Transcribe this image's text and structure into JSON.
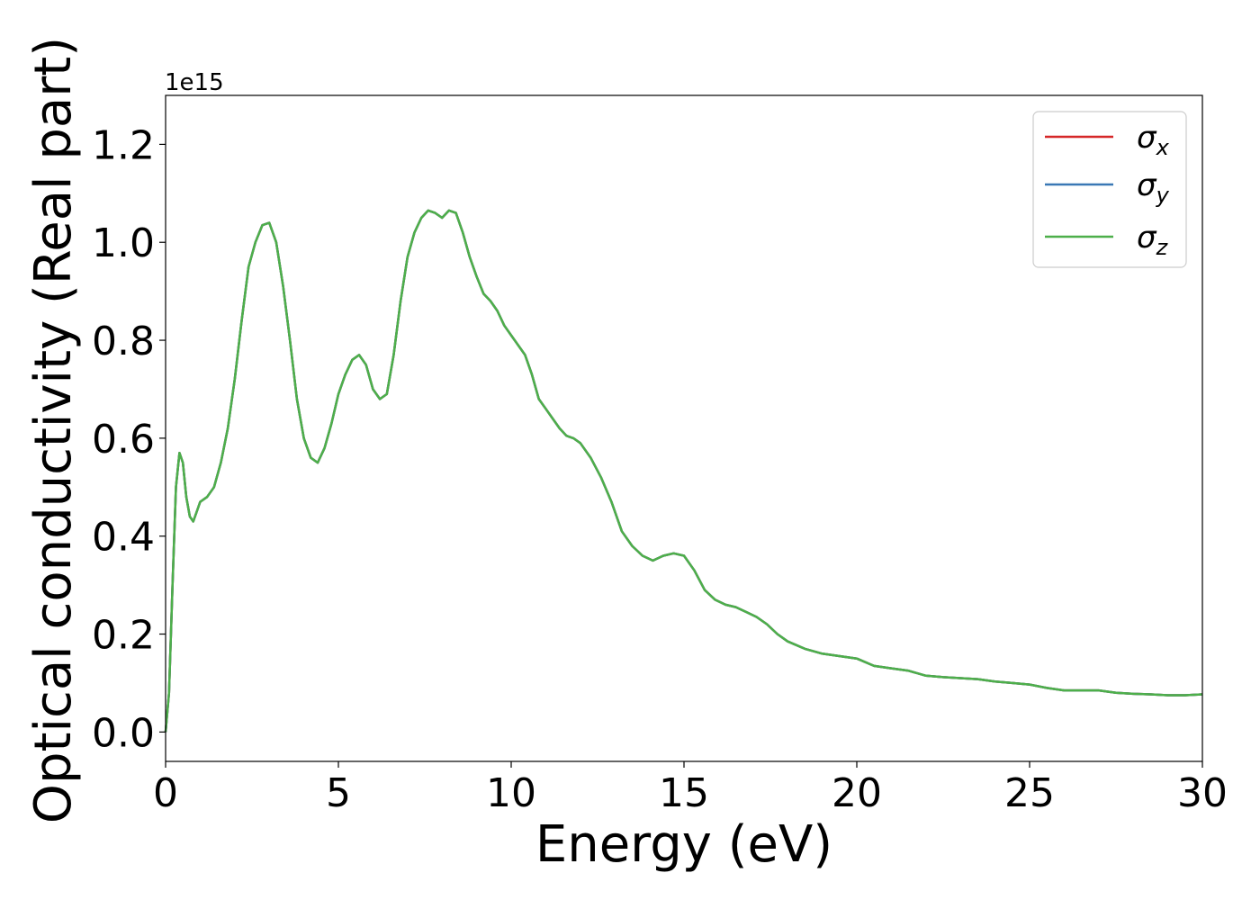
{
  "chart_data": {
    "type": "line",
    "xlabel": "Energy (eV)",
    "ylabel": "Optical conductivity (Real part)",
    "offset_label": "1e15",
    "xlim": [
      0,
      30
    ],
    "ylim": [
      -0.06,
      1.3
    ],
    "xticks": [
      0,
      5,
      10,
      15,
      20,
      25,
      30
    ],
    "xtick_labels": [
      "0",
      "5",
      "10",
      "15",
      "20",
      "25",
      "30"
    ],
    "yticks": [
      0.0,
      0.2,
      0.4,
      0.6,
      0.8,
      1.0,
      1.2
    ],
    "ytick_labels": [
      "0.0",
      "0.2",
      "0.4",
      "0.6",
      "0.8",
      "1.0",
      "1.2"
    ],
    "grid": false,
    "legend_position": "top-right",
    "legend": [
      {
        "base": "σ",
        "sub": "x",
        "color": "#d62728"
      },
      {
        "base": "σ",
        "sub": "y",
        "color": "#3a78b5"
      },
      {
        "base": "σ",
        "sub": "z",
        "color": "#4daf4a"
      }
    ],
    "series_note_hidden": "",
    "x": [
      0.0,
      0.1,
      0.2,
      0.3,
      0.4,
      0.5,
      0.6,
      0.7,
      0.8,
      0.9,
      1.0,
      1.2,
      1.4,
      1.6,
      1.8,
      2.0,
      2.2,
      2.4,
      2.6,
      2.8,
      3.0,
      3.2,
      3.4,
      3.6,
      3.8,
      4.0,
      4.2,
      4.4,
      4.6,
      4.8,
      5.0,
      5.2,
      5.4,
      5.6,
      5.8,
      6.0,
      6.2,
      6.4,
      6.6,
      6.8,
      7.0,
      7.2,
      7.4,
      7.6,
      7.8,
      8.0,
      8.2,
      8.4,
      8.6,
      8.8,
      9.0,
      9.2,
      9.4,
      9.6,
      9.8,
      10.0,
      10.2,
      10.4,
      10.6,
      10.8,
      11.0,
      11.2,
      11.4,
      11.6,
      11.8,
      12.0,
      12.3,
      12.6,
      12.9,
      13.2,
      13.5,
      13.8,
      14.1,
      14.4,
      14.7,
      15.0,
      15.3,
      15.6,
      15.9,
      16.2,
      16.5,
      16.8,
      17.1,
      17.4,
      17.7,
      18.0,
      18.5,
      19.0,
      19.5,
      20.0,
      20.5,
      21.0,
      21.5,
      22.0,
      22.5,
      23.0,
      23.5,
      24.0,
      24.5,
      25.0,
      25.5,
      26.0,
      26.5,
      27.0,
      27.5,
      28.0,
      28.5,
      29.0,
      29.5,
      30.0
    ],
    "series": [
      {
        "color": "#d62728",
        "values": [
          0.0,
          0.08,
          0.3,
          0.5,
          0.57,
          0.55,
          0.48,
          0.44,
          0.43,
          0.45,
          0.47,
          0.48,
          0.5,
          0.55,
          0.62,
          0.72,
          0.84,
          0.95,
          1.0,
          1.035,
          1.04,
          1.0,
          0.91,
          0.8,
          0.68,
          0.6,
          0.56,
          0.55,
          0.58,
          0.63,
          0.69,
          0.73,
          0.76,
          0.77,
          0.75,
          0.7,
          0.68,
          0.69,
          0.77,
          0.88,
          0.97,
          1.02,
          1.05,
          1.065,
          1.06,
          1.05,
          1.065,
          1.06,
          1.02,
          0.97,
          0.93,
          0.895,
          0.88,
          0.86,
          0.83,
          0.81,
          0.79,
          0.77,
          0.73,
          0.68,
          0.66,
          0.64,
          0.62,
          0.605,
          0.6,
          0.59,
          0.56,
          0.52,
          0.47,
          0.41,
          0.38,
          0.36,
          0.35,
          0.36,
          0.365,
          0.36,
          0.33,
          0.29,
          0.27,
          0.26,
          0.255,
          0.245,
          0.235,
          0.22,
          0.2,
          0.185,
          0.17,
          0.16,
          0.155,
          0.15,
          0.135,
          0.13,
          0.125,
          0.115,
          0.112,
          0.11,
          0.108,
          0.103,
          0.1,
          0.097,
          0.09,
          0.085,
          0.085,
          0.085,
          0.08,
          0.078,
          0.077,
          0.075,
          0.075,
          0.077
        ]
      },
      {
        "color": "#3a78b5",
        "values": [
          0.0,
          0.08,
          0.3,
          0.5,
          0.57,
          0.55,
          0.48,
          0.44,
          0.43,
          0.45,
          0.47,
          0.48,
          0.5,
          0.55,
          0.62,
          0.72,
          0.84,
          0.95,
          1.0,
          1.035,
          1.04,
          1.0,
          0.91,
          0.8,
          0.68,
          0.6,
          0.56,
          0.55,
          0.58,
          0.63,
          0.69,
          0.73,
          0.76,
          0.77,
          0.75,
          0.7,
          0.68,
          0.69,
          0.77,
          0.88,
          0.97,
          1.02,
          1.05,
          1.065,
          1.06,
          1.05,
          1.065,
          1.06,
          1.02,
          0.97,
          0.93,
          0.895,
          0.88,
          0.86,
          0.83,
          0.81,
          0.79,
          0.77,
          0.73,
          0.68,
          0.66,
          0.64,
          0.62,
          0.605,
          0.6,
          0.59,
          0.56,
          0.52,
          0.47,
          0.41,
          0.38,
          0.36,
          0.35,
          0.36,
          0.365,
          0.36,
          0.33,
          0.29,
          0.27,
          0.26,
          0.255,
          0.245,
          0.235,
          0.22,
          0.2,
          0.185,
          0.17,
          0.16,
          0.155,
          0.15,
          0.135,
          0.13,
          0.125,
          0.115,
          0.112,
          0.11,
          0.108,
          0.103,
          0.1,
          0.097,
          0.09,
          0.085,
          0.085,
          0.085,
          0.08,
          0.078,
          0.077,
          0.075,
          0.075,
          0.077
        ]
      },
      {
        "color": "#4daf4a",
        "values": [
          0.0,
          0.08,
          0.3,
          0.5,
          0.57,
          0.55,
          0.48,
          0.44,
          0.43,
          0.45,
          0.47,
          0.48,
          0.5,
          0.55,
          0.62,
          0.72,
          0.84,
          0.95,
          1.0,
          1.035,
          1.04,
          1.0,
          0.91,
          0.8,
          0.68,
          0.6,
          0.56,
          0.55,
          0.58,
          0.63,
          0.69,
          0.73,
          0.76,
          0.77,
          0.75,
          0.7,
          0.68,
          0.69,
          0.77,
          0.88,
          0.97,
          1.02,
          1.05,
          1.065,
          1.06,
          1.05,
          1.065,
          1.06,
          1.02,
          0.97,
          0.93,
          0.895,
          0.88,
          0.86,
          0.83,
          0.81,
          0.79,
          0.77,
          0.73,
          0.68,
          0.66,
          0.64,
          0.62,
          0.605,
          0.6,
          0.59,
          0.56,
          0.52,
          0.47,
          0.41,
          0.38,
          0.36,
          0.35,
          0.36,
          0.365,
          0.36,
          0.33,
          0.29,
          0.27,
          0.26,
          0.255,
          0.245,
          0.235,
          0.22,
          0.2,
          0.185,
          0.17,
          0.16,
          0.155,
          0.15,
          0.135,
          0.13,
          0.125,
          0.115,
          0.112,
          0.11,
          0.108,
          0.103,
          0.1,
          0.097,
          0.09,
          0.085,
          0.085,
          0.085,
          0.08,
          0.078,
          0.077,
          0.075,
          0.075,
          0.077
        ]
      }
    ]
  }
}
